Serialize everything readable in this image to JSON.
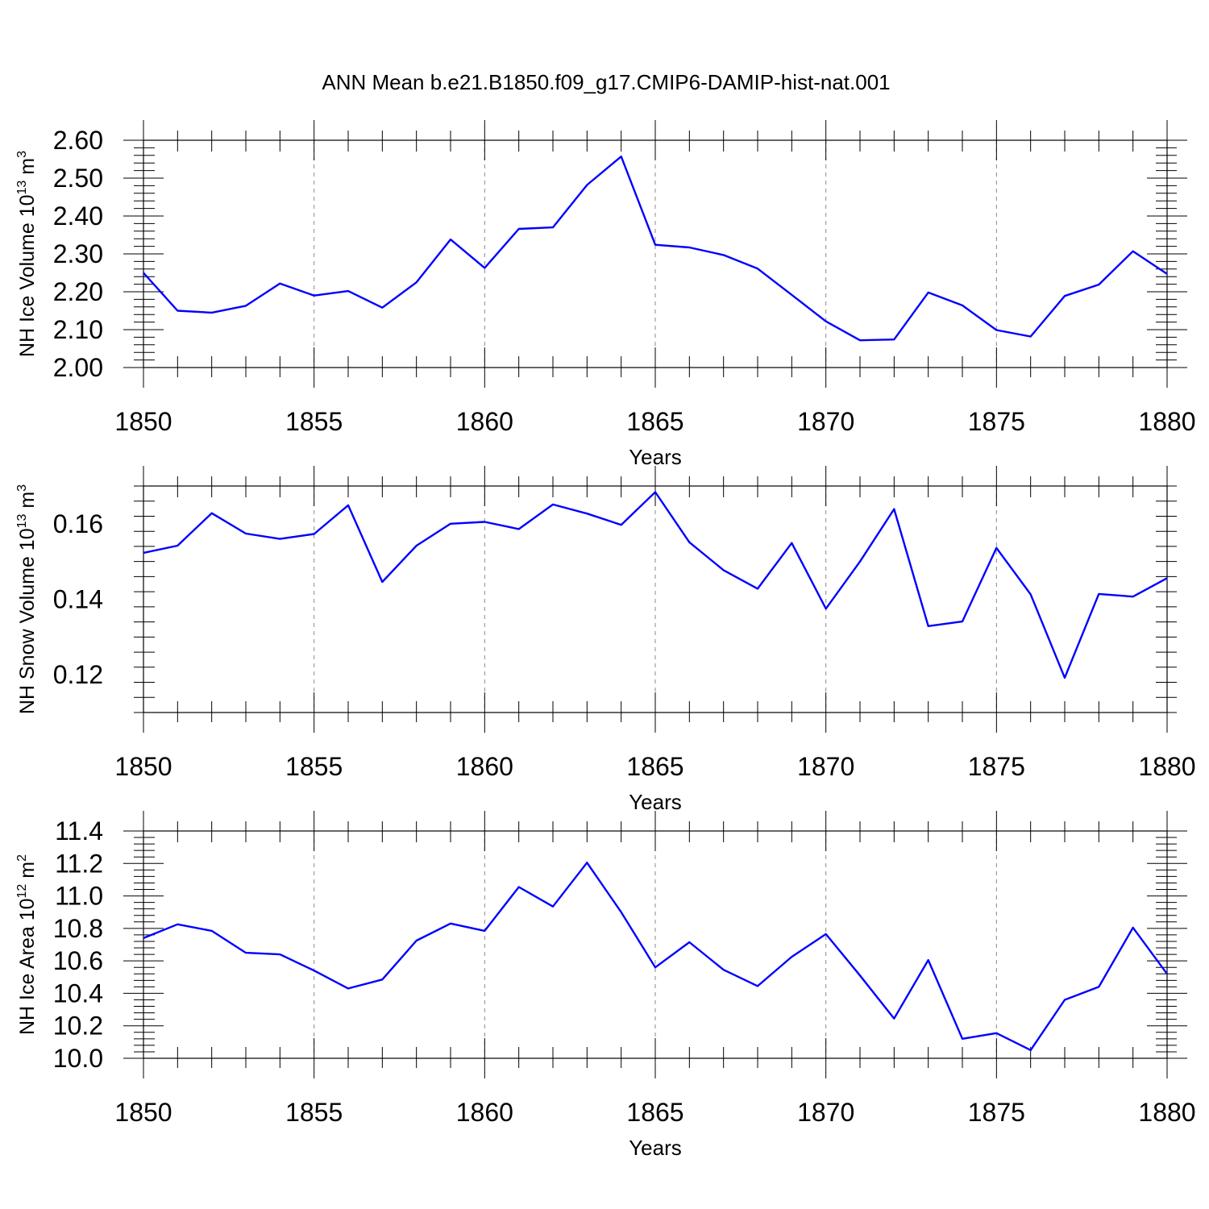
{
  "title": "ANN Mean b.e21.B1850.f09_g17.CMIP6-DAMIP-hist-nat.001",
  "colors": {
    "series": "#0000ff",
    "axis": "#000000",
    "grid": "#888888"
  },
  "chart_data": [
    {
      "type": "line",
      "ylabel": {
        "main": "NH Ice Volume 10",
        "sup": "13",
        "mid": " m",
        "sup2": "3"
      },
      "xlabel": "Years",
      "xlim": [
        1850,
        1880
      ],
      "ylim": [
        2.0,
        2.6
      ],
      "xticks": [
        "1850",
        "1855",
        "1860",
        "1865",
        "1870",
        "1875",
        "1880"
      ],
      "yticks": [
        "2.00",
        "2.10",
        "2.20",
        "2.30",
        "2.40",
        "2.50",
        "2.60"
      ],
      "grid": "vertical dashed at major x ticks",
      "x": [
        1850,
        1851,
        1852,
        1853,
        1854,
        1855,
        1856,
        1857,
        1858,
        1859,
        1860,
        1861,
        1862,
        1863,
        1864,
        1865,
        1866,
        1867,
        1868,
        1869,
        1870,
        1871,
        1872,
        1873,
        1874,
        1875,
        1876,
        1877,
        1878,
        1879,
        1880
      ],
      "values": [
        2.25,
        2.15,
        2.145,
        2.163,
        2.222,
        2.19,
        2.202,
        2.158,
        2.225,
        2.338,
        2.263,
        2.366,
        2.37,
        2.482,
        2.557,
        2.324,
        2.317,
        2.297,
        2.261,
        2.192,
        2.122,
        2.072,
        2.074,
        2.198,
        2.164,
        2.099,
        2.082,
        2.189,
        2.219,
        2.307,
        2.247
      ]
    },
    {
      "type": "line",
      "ylabel": {
        "main": "NH Snow Volume 10",
        "sup": "13",
        "mid": " m",
        "sup2": "3"
      },
      "xlabel": "Years",
      "xlim": [
        1850,
        1880
      ],
      "ylim": [
        0.11,
        0.17
      ],
      "xticks": [
        "1850",
        "1855",
        "1860",
        "1865",
        "1870",
        "1875",
        "1880"
      ],
      "yticks": [
        "0.12",
        "0.14",
        "0.16"
      ],
      "grid": "vertical dashed at major x ticks",
      "x": [
        1850,
        1851,
        1852,
        1853,
        1854,
        1855,
        1856,
        1857,
        1858,
        1859,
        1860,
        1861,
        1862,
        1863,
        1864,
        1865,
        1866,
        1867,
        1868,
        1869,
        1870,
        1871,
        1872,
        1873,
        1874,
        1875,
        1876,
        1877,
        1878,
        1879,
        1880
      ],
      "values": [
        0.1523,
        0.1542,
        0.1628,
        0.1574,
        0.156,
        0.1573,
        0.1649,
        0.1446,
        0.1542,
        0.16,
        0.1605,
        0.1586,
        0.1651,
        0.1627,
        0.1597,
        0.1684,
        0.1551,
        0.1477,
        0.1428,
        0.1549,
        0.1375,
        0.15,
        0.1639,
        0.1329,
        0.1341,
        0.1536,
        0.1413,
        0.1192,
        0.1414,
        0.1407,
        0.1456
      ]
    },
    {
      "type": "line",
      "ylabel": {
        "main": "NH Ice Area 10",
        "sup": "12",
        "mid": " m",
        "sup2": "2"
      },
      "xlabel": "Years",
      "xlim": [
        1850,
        1880
      ],
      "ylim": [
        10.0,
        11.4
      ],
      "xticks": [
        "1850",
        "1855",
        "1860",
        "1865",
        "1870",
        "1875",
        "1880"
      ],
      "yticks": [
        "10.0",
        "10.2",
        "10.4",
        "10.6",
        "10.8",
        "11.0",
        "11.2",
        "11.4"
      ],
      "grid": "vertical dashed at major x ticks",
      "x": [
        1850,
        1851,
        1852,
        1853,
        1854,
        1855,
        1856,
        1857,
        1858,
        1859,
        1860,
        1861,
        1862,
        1863,
        1864,
        1865,
        1866,
        1867,
        1868,
        1869,
        1870,
        1871,
        1872,
        1873,
        1874,
        1875,
        1876,
        1877,
        1878,
        1879,
        1880
      ],
      "values": [
        10.74,
        10.825,
        10.785,
        10.65,
        10.64,
        10.54,
        10.43,
        10.485,
        10.725,
        10.83,
        10.785,
        11.055,
        10.935,
        11.205,
        10.9,
        10.56,
        10.715,
        10.545,
        10.445,
        10.625,
        10.765,
        10.51,
        10.245,
        10.605,
        10.12,
        10.155,
        10.05,
        10.36,
        10.44,
        10.805,
        10.52
      ]
    }
  ]
}
